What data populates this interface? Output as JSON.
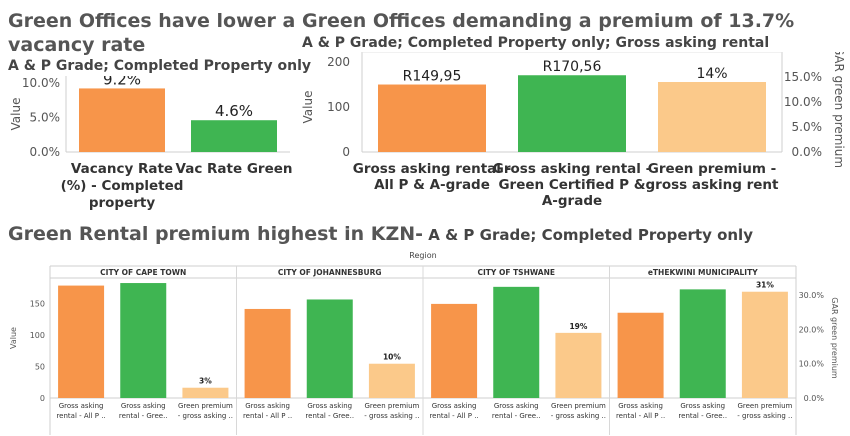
{
  "panel1": {
    "title_line1": "Green Offices have lower a",
    "title_line2": "vacancy rate",
    "subtitle": "A & P Grade; Completed Property only"
  },
  "panel2": {
    "title": "Green Offices demanding a  premium of 13.7%",
    "subtitle": "A & P Grade; Completed Property only; Gross asking rental"
  },
  "panel3": {
    "title_main": "Green Rental premium highest in KZN-",
    "title_sub": " A & P Grade; Completed Property only",
    "header": "Region"
  },
  "colors": {
    "orange": "#f7954a",
    "green": "#3fb552",
    "light_orange": "#fbc98a"
  },
  "chart_data": [
    {
      "type": "bar",
      "ylabel": "Value",
      "ylim": [
        0,
        0.11
      ],
      "y_ticks": [
        "0.0%",
        "5.0%",
        "10.0%"
      ],
      "categories": [
        [
          "Vacancy Rate",
          "(%) - Completed",
          "property"
        ],
        [
          "Vac Rate Green"
        ]
      ],
      "values": [
        0.092,
        0.046
      ],
      "data_labels": [
        "9.2%",
        "4.6%"
      ],
      "bar_colors": [
        "orange",
        "green"
      ]
    },
    {
      "type": "bar",
      "ylabel": "Value",
      "y2label": "GAR green premium",
      "ylim": [
        0,
        200
      ],
      "y_ticks": [
        "0",
        "100",
        "200"
      ],
      "y2_ticks": [
        "0.0%",
        "5.0%",
        "10.0%",
        "15.0%"
      ],
      "categories": [
        [
          "Gross asking rental -",
          "All P & A-grade"
        ],
        [
          "Gross asking rental -",
          "Green Certified P &",
          "A-grade"
        ],
        [
          "Green premium -",
          "gross asking rent"
        ]
      ],
      "values": [
        149.95,
        170.56,
        0.14
      ],
      "data_labels": [
        "R149,95",
        "R170,56",
        "14%"
      ],
      "bar_colors": [
        "orange",
        "green",
        "light_orange"
      ]
    },
    {
      "type": "bar",
      "ylabel": "Value",
      "y2label": "GAR green premium",
      "ylim": [
        0,
        190
      ],
      "y_ticks": [
        "0",
        "50",
        "100",
        "150"
      ],
      "y2_ticks": [
        "0.0%",
        "10.0%",
        "20.0%",
        "30.0%"
      ],
      "categories": [
        [
          "Gross asking",
          "rental - All P .."
        ],
        [
          "Gross asking",
          "rental - Gree.."
        ],
        [
          "Green premium",
          "- gross asking .."
        ]
      ],
      "regions": [
        {
          "name": "CITY OF CAPE TOWN",
          "values": [
            178,
            182,
            0.03
          ],
          "premium_label": "3%"
        },
        {
          "name": "CITY OF JOHANNESBURG",
          "values": [
            141,
            156,
            0.1
          ],
          "premium_label": "10%"
        },
        {
          "name": "CITY OF TSHWANE",
          "values": [
            149,
            176,
            0.19
          ],
          "premium_label": "19%"
        },
        {
          "name": "eTHEKWINI MUNICIPALITY",
          "values": [
            135,
            172,
            0.31
          ],
          "premium_label": "31%"
        }
      ],
      "bar_colors": [
        "orange",
        "green",
        "light_orange"
      ]
    }
  ]
}
